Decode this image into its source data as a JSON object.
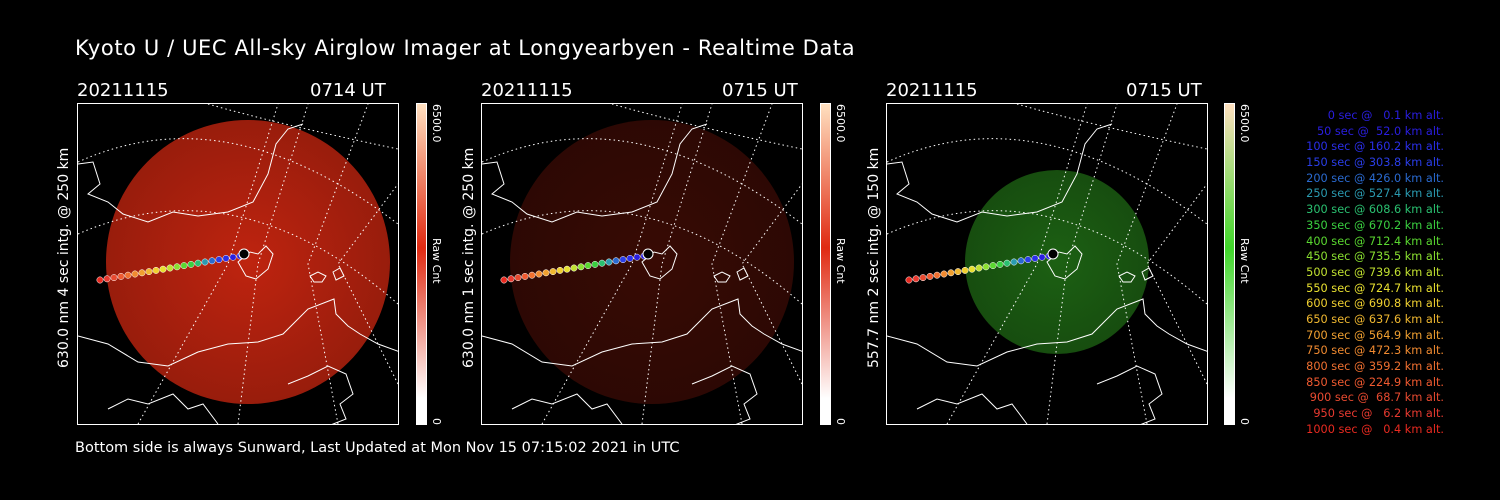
{
  "title": "Kyoto U / UEC All-sky Airglow Imager at Longyearbyen - Realtime Data",
  "footer": "Bottom side is always Sunward, Last Updated at Mon Nov 15 07:15:02 2021 in UTC",
  "colorbar_max_label": "6500.0",
  "colorbar_min_label": "0",
  "colorbar_unit": "Raw Cnt",
  "panels": [
    {
      "date": "20211115",
      "time": "0714 UT",
      "label": "630.0 nm 4 sec intg. @ 250 km",
      "color": "#e02a12",
      "brightness": 0.85
    },
    {
      "date": "20211115",
      "time": "0715 UT",
      "label": "630.0 nm 1 sec intg. @ 250 km",
      "color": "#e02a12",
      "brightness": 0.25
    },
    {
      "date": "20211115",
      "time": "0715 UT",
      "label": "557.7 nm 2 sec intg. @ 150 km",
      "color": "#3fd62a",
      "brightness": 0.45
    }
  ],
  "legend": [
    {
      "text": "0 sec @   0.1 km alt.",
      "color": "#2a1ee0"
    },
    {
      "text": "50 sec @  52.0 km alt.",
      "color": "#2a1ee0"
    },
    {
      "text": "100 sec @ 160.2 km alt.",
      "color": "#2a2ee8"
    },
    {
      "text": "150 sec @ 303.8 km alt.",
      "color": "#2a3ee8"
    },
    {
      "text": "200 sec @ 426.0 km alt.",
      "color": "#2a6ad0"
    },
    {
      "text": "250 sec @ 527.4 km alt.",
      "color": "#2a9ab0"
    },
    {
      "text": "300 sec @ 608.6 km alt.",
      "color": "#2ac070"
    },
    {
      "text": "350 sec @ 670.2 km alt.",
      "color": "#3ad040"
    },
    {
      "text": "400 sec @ 712.4 km alt.",
      "color": "#5ad830"
    },
    {
      "text": "450 sec @ 735.5 km alt.",
      "color": "#8ae030"
    },
    {
      "text": "500 sec @ 739.6 km alt.",
      "color": "#c0e030"
    },
    {
      "text": "550 sec @ 724.7 km alt.",
      "color": "#e8e030"
    },
    {
      "text": "600 sec @ 690.8 km alt.",
      "color": "#f0d030"
    },
    {
      "text": "650 sec @ 637.6 km alt.",
      "color": "#f0b830"
    },
    {
      "text": "700 sec @ 564.9 km alt.",
      "color": "#f0a030"
    },
    {
      "text": "750 sec @ 472.3 km alt.",
      "color": "#f08a30"
    },
    {
      "text": "800 sec @ 359.2 km alt.",
      "color": "#f07030"
    },
    {
      "text": "850 sec @ 224.9 km alt.",
      "color": "#f05a30"
    },
    {
      "text": "900 sec @  68.7 km alt.",
      "color": "#e84a30"
    },
    {
      "text": "950 sec @   6.2 km alt.",
      "color": "#e83a30"
    },
    {
      "text": "1000 sec @   0.4 km alt.",
      "color": "#e82a20"
    }
  ]
}
